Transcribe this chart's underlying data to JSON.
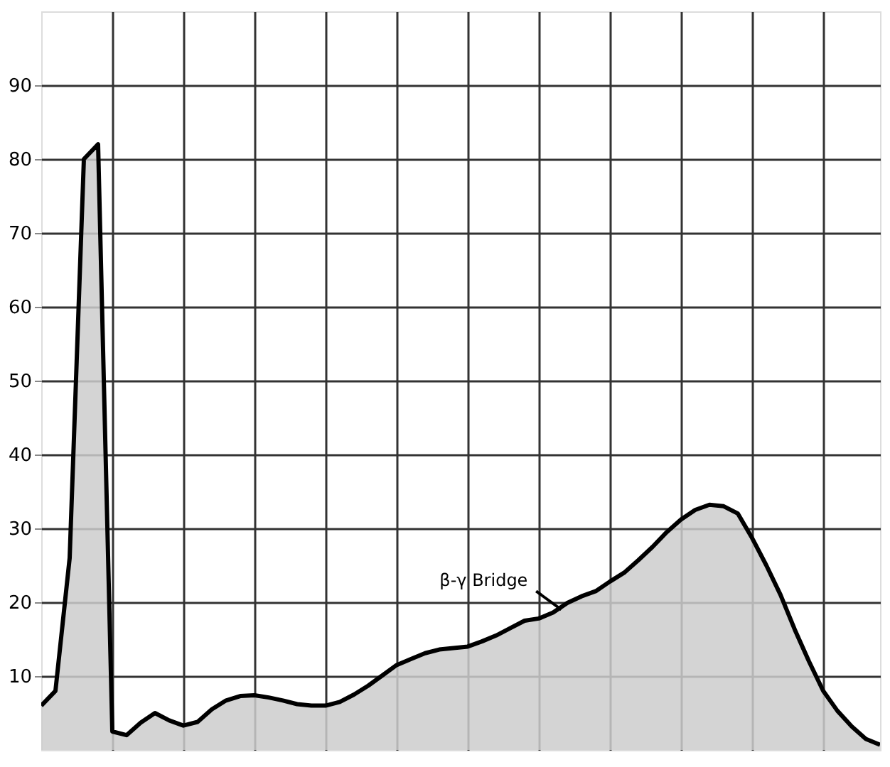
{
  "chart_data": {
    "type": "area",
    "categories": [
      null,
      null,
      null,
      null,
      null,
      null,
      null,
      null,
      null,
      null,
      null,
      null,
      null,
      null,
      null,
      null,
      null,
      null,
      null,
      null,
      null,
      null,
      null,
      null,
      null,
      null,
      null,
      null,
      null,
      null,
      null,
      null,
      null,
      null,
      null,
      null,
      null,
      null,
      null,
      null,
      null,
      null,
      null,
      null,
      null,
      null,
      null,
      null,
      null,
      null,
      null,
      null,
      null,
      null,
      null,
      null,
      null,
      null,
      null,
      null
    ],
    "series": [
      {
        "color": "#cccccc",
        "values": [
          6,
          8,
          26,
          80,
          82,
          2.5,
          2,
          3.7,
          5,
          4,
          3.3,
          3.8,
          5.5,
          6.7,
          7.3,
          7.4,
          7.1,
          6.7,
          6.2,
          6,
          6,
          6.5,
          7.5,
          8.7,
          10.1,
          11.5,
          12.3,
          13.1,
          13.6,
          13.8,
          14,
          14.7,
          15.5,
          16.5,
          17.5,
          17.8,
          18.6,
          19.9,
          20.8,
          21.5,
          22.8,
          24,
          25.7,
          27.5,
          29.5,
          31.2,
          32.5,
          33.2,
          33,
          32,
          28.7,
          25,
          21,
          16.3,
          12,
          8,
          5.3,
          3.2,
          1.5,
          0.7
        ]
      }
    ],
    "ylim": [
      0,
      100
    ],
    "yticks": [
      10,
      20,
      30,
      40,
      50,
      60,
      70,
      80,
      90
    ],
    "tick_labels": "y",
    "grid": true,
    "annotations": [
      "β-γ Bridge"
    ]
  }
}
